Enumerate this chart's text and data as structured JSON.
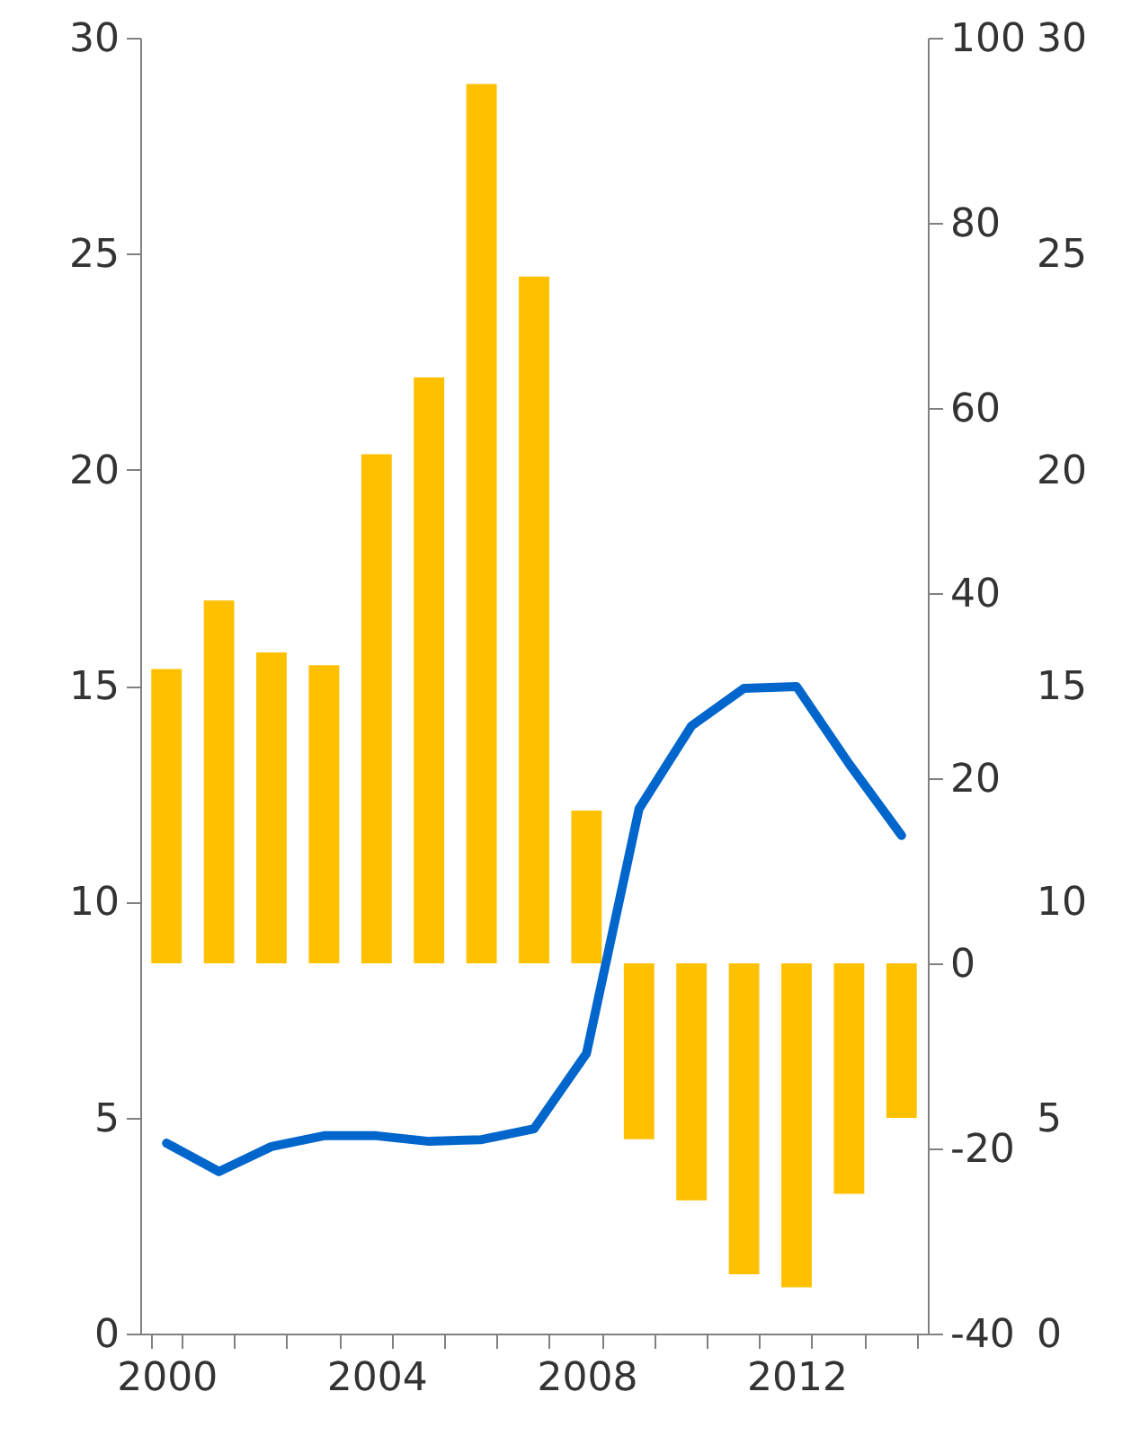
{
  "chart_data": {
    "type": "bar",
    "categories": [
      "2000",
      null,
      null,
      null,
      "2004",
      null,
      null,
      null,
      "2008",
      null,
      null,
      null,
      "2012",
      null,
      null
    ],
    "series": [
      {
        "axis": "y2",
        "color": "#ffc000",
        "values": [
          31.8,
          39.2,
          33.6,
          32.2,
          55,
          63.3,
          95,
          74.2,
          16.5,
          -19,
          -25.6,
          -33.6,
          -35,
          -24.9,
          -16.7
        ]
      },
      {
        "type": "line",
        "axis": "y",
        "color": "#0066cc",
        "values": [
          4.41,
          3.75,
          4.33,
          4.58,
          4.58,
          4.45,
          4.49,
          4.74,
          6.49,
          12.15,
          14.07,
          14.94,
          14.98,
          13.19,
          11.53
        ]
      }
    ],
    "ylim": [
      0,
      30
    ],
    "yticks": [
      0,
      5,
      10,
      15,
      20,
      25,
      30
    ],
    "y2lim": [
      -40,
      100
    ],
    "y2ticks": [
      -40,
      -20,
      0,
      20,
      40,
      60,
      80,
      100
    ],
    "y3lim": [
      0,
      30
    ],
    "y3ticks": [
      0,
      5,
      10,
      15,
      20,
      25,
      30
    ],
    "grid": false,
    "marker": "none",
    "line_style": "solid"
  }
}
